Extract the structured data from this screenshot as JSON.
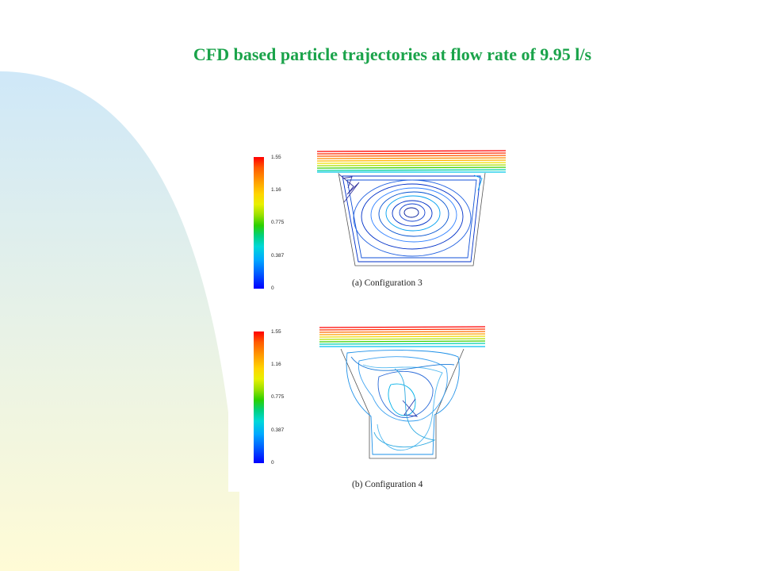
{
  "slide": {
    "title": "CFD based particle trajectories at flow rate of 9.95 l/s",
    "title_color": "#1aa34a",
    "background_gradient": [
      "#cfe8f8",
      "#fffbd6"
    ]
  },
  "colorbar": {
    "ticks": [
      "1.55",
      "1.16",
      "0.775",
      "0.387",
      "0"
    ],
    "colors": [
      "#ff0000",
      "#ff9a00",
      "#e8f000",
      "#2bd000",
      "#00d8d8",
      "#0060ff",
      "#0000ff"
    ]
  },
  "figures": [
    {
      "caption": "(a) Configuration 3"
    },
    {
      "caption": "(b) Configuration 4"
    }
  ]
}
